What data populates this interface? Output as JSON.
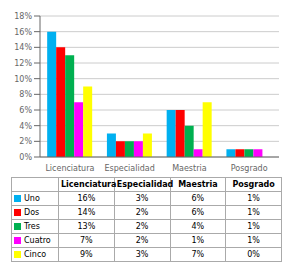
{
  "chart_data": {
    "type": "bar",
    "categories": [
      "Licenciatura",
      "Especialidad",
      "Maestria",
      "Posgrado"
    ],
    "series": [
      {
        "name": "Uno",
        "color": "#00B0F0",
        "values": [
          16,
          3,
          6,
          1
        ],
        "value_labels": [
          "16%",
          "3%",
          "6%",
          "1%"
        ]
      },
      {
        "name": "Dos",
        "color": "#FF0000",
        "values": [
          14,
          2,
          6,
          1
        ],
        "value_labels": [
          "14%",
          "2%",
          "6%",
          "1%"
        ]
      },
      {
        "name": "Tres",
        "color": "#00B050",
        "values": [
          13,
          2,
          4,
          1
        ],
        "value_labels": [
          "13%",
          "2%",
          "4%",
          "1%"
        ]
      },
      {
        "name": "Cuatro",
        "color": "#FF00FF",
        "values": [
          7,
          2,
          1,
          1
        ],
        "value_labels": [
          "7%",
          "2%",
          "1%",
          "1%"
        ]
      },
      {
        "name": "Cinco",
        "color": "#FFFF00",
        "values": [
          9,
          3,
          7,
          0
        ],
        "value_labels": [
          "9%",
          "3%",
          "7%",
          "0%"
        ]
      }
    ],
    "ylim": [
      0,
      18
    ],
    "yticks": [
      {
        "value": 0,
        "label": "0%"
      },
      {
        "value": 2,
        "label": "2%"
      },
      {
        "value": 4,
        "label": "4%"
      },
      {
        "value": 6,
        "label": "6%"
      },
      {
        "value": 8,
        "label": "8%"
      },
      {
        "value": 10,
        "label": "10%"
      },
      {
        "value": 12,
        "label": "12%"
      },
      {
        "value": 14,
        "label": "14%"
      },
      {
        "value": 16,
        "label": "16%"
      },
      {
        "value": 18,
        "label": "18%"
      }
    ],
    "grid": true,
    "legend": "bottom"
  }
}
